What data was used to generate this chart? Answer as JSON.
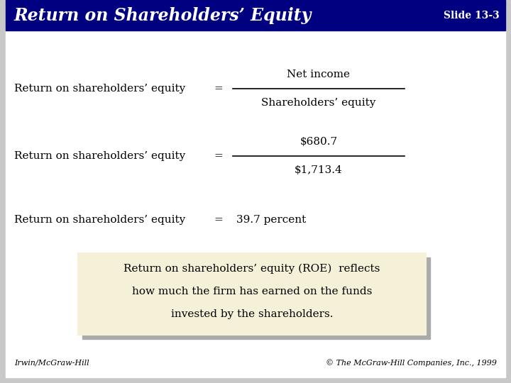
{
  "title": "Return on Shareholders’ Equity",
  "slide_num": "Slide 13-3",
  "header_bg": "#000080",
  "header_text_color": "#ffffff",
  "row1_label": "Return on shareholders’ equity",
  "row1_eq": "=",
  "row1_numerator": "Net income",
  "row1_denominator": "Shareholders’ equity",
  "row2_label": "Return on shareholders’ equity",
  "row2_eq": "=",
  "row2_numerator": "$680.7",
  "row2_denominator": "$1,713.4",
  "row3_label": "Return on shareholders’ equity",
  "row3_eq": "=",
  "row3_result": "39.7 percent",
  "box_text_line1": "Return on shareholders’ equity (ROE)  reflects",
  "box_text_line2": "how much the firm has earned on the funds",
  "box_text_line3": "invested by the shareholders.",
  "box_bg": "#f5f0d8",
  "box_border": "#888870",
  "shadow_color": "#aaaaaa",
  "footer_left": "Irwin/McGraw-Hill",
  "footer_right": "© The McGraw-Hill Companies, Inc., 1999",
  "slide_bg": "#ffffff",
  "outer_bg": "#c8c8c8",
  "label_fontsize": 11,
  "title_fontsize": 17,
  "slide_num_fontsize": 10,
  "body_fontsize": 11,
  "footer_fontsize": 8
}
